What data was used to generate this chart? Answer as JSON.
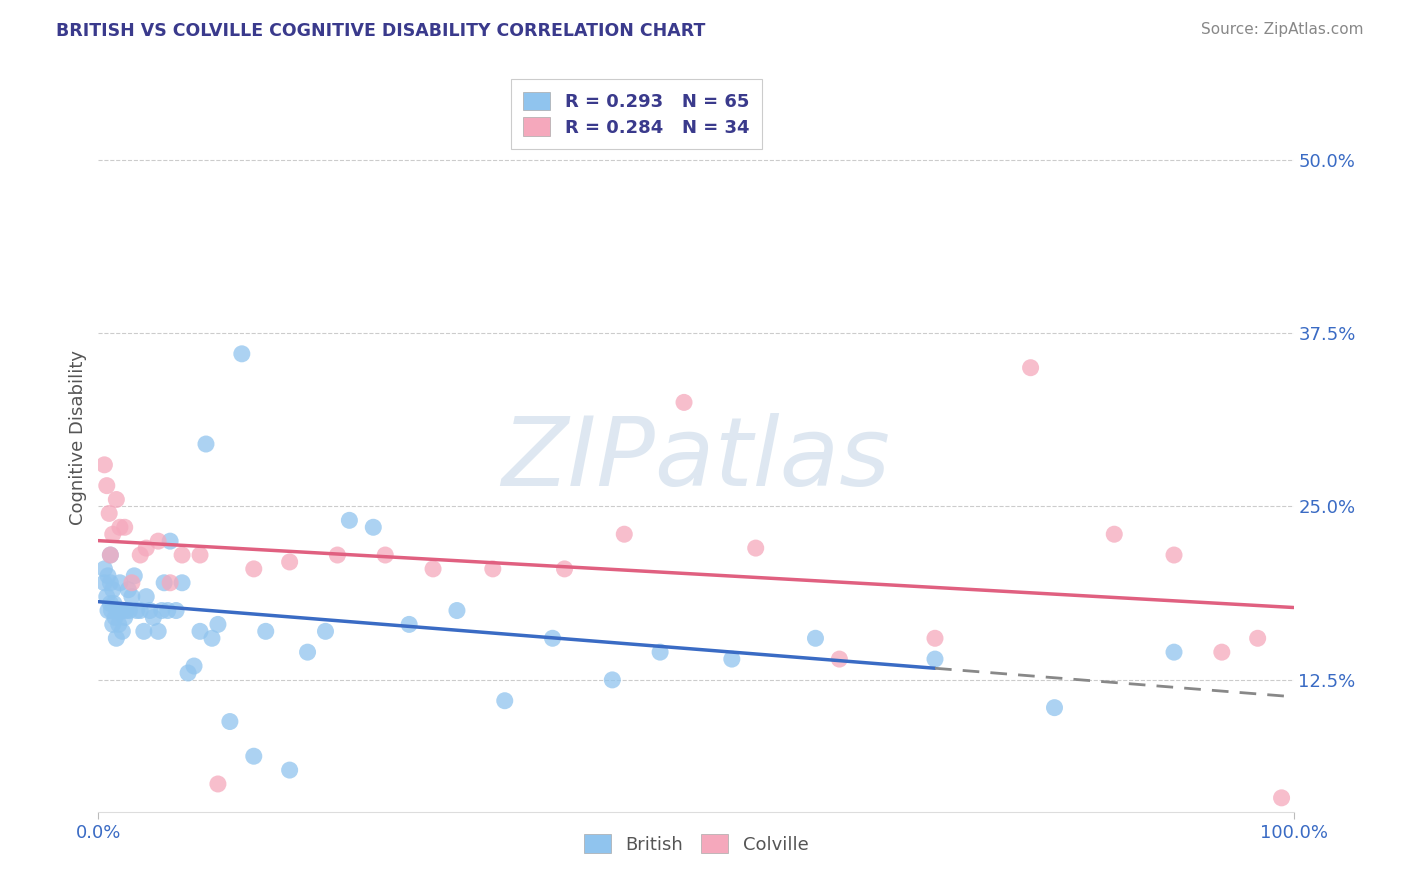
{
  "title": "BRITISH VS COLVILLE COGNITIVE DISABILITY CORRELATION CHART",
  "source": "Source: ZipAtlas.com",
  "ylabel": "Cognitive Disability",
  "ytick_labels": [
    "12.5%",
    "25.0%",
    "37.5%",
    "50.0%"
  ],
  "ytick_values": [
    0.125,
    0.25,
    0.375,
    0.5
  ],
  "xlim": [
    0.0,
    1.0
  ],
  "ylim": [
    0.03,
    0.57
  ],
  "british_R": "0.293",
  "british_N": "65",
  "colville_R": "0.284",
  "colville_N": "34",
  "british_color": "#90C4EE",
  "colville_color": "#F5A8BC",
  "british_line_color": "#3A6BC4",
  "colville_line_color": "#E06080",
  "watermark_text": "ZIPatlas",
  "watermark_color": "#C8D8E8",
  "background_color": "#FFFFFF",
  "grid_color": "#CCCCCC",
  "british_x": [
    0.005,
    0.005,
    0.007,
    0.008,
    0.008,
    0.01,
    0.01,
    0.01,
    0.011,
    0.012,
    0.012,
    0.013,
    0.014,
    0.015,
    0.016,
    0.017,
    0.018,
    0.019,
    0.02,
    0.02,
    0.022,
    0.023,
    0.025,
    0.026,
    0.028,
    0.03,
    0.032,
    0.035,
    0.038,
    0.04,
    0.043,
    0.046,
    0.05,
    0.053,
    0.055,
    0.058,
    0.06,
    0.065,
    0.07,
    0.075,
    0.08,
    0.085,
    0.09,
    0.095,
    0.1,
    0.11,
    0.12,
    0.13,
    0.14,
    0.16,
    0.175,
    0.19,
    0.21,
    0.23,
    0.26,
    0.3,
    0.34,
    0.38,
    0.43,
    0.47,
    0.53,
    0.6,
    0.7,
    0.8,
    0.9
  ],
  "british_y": [
    0.195,
    0.205,
    0.185,
    0.175,
    0.2,
    0.18,
    0.195,
    0.215,
    0.175,
    0.165,
    0.19,
    0.18,
    0.17,
    0.155,
    0.175,
    0.165,
    0.195,
    0.175,
    0.175,
    0.16,
    0.17,
    0.175,
    0.19,
    0.175,
    0.185,
    0.2,
    0.175,
    0.175,
    0.16,
    0.185,
    0.175,
    0.17,
    0.16,
    0.175,
    0.195,
    0.175,
    0.225,
    0.175,
    0.195,
    0.13,
    0.135,
    0.16,
    0.295,
    0.155,
    0.165,
    0.095,
    0.36,
    0.07,
    0.16,
    0.06,
    0.145,
    0.16,
    0.24,
    0.235,
    0.165,
    0.175,
    0.11,
    0.155,
    0.125,
    0.145,
    0.14,
    0.155,
    0.14,
    0.105,
    0.145
  ],
  "colville_x": [
    0.005,
    0.007,
    0.009,
    0.01,
    0.012,
    0.015,
    0.018,
    0.022,
    0.028,
    0.035,
    0.04,
    0.05,
    0.06,
    0.07,
    0.085,
    0.1,
    0.13,
    0.16,
    0.2,
    0.24,
    0.28,
    0.33,
    0.39,
    0.44,
    0.49,
    0.55,
    0.62,
    0.7,
    0.78,
    0.85,
    0.9,
    0.94,
    0.97,
    0.99
  ],
  "colville_y": [
    0.28,
    0.265,
    0.245,
    0.215,
    0.23,
    0.255,
    0.235,
    0.235,
    0.195,
    0.215,
    0.22,
    0.225,
    0.195,
    0.215,
    0.215,
    0.05,
    0.205,
    0.21,
    0.215,
    0.215,
    0.205,
    0.205,
    0.205,
    0.23,
    0.325,
    0.22,
    0.14,
    0.155,
    0.35,
    0.23,
    0.215,
    0.145,
    0.155,
    0.04
  ],
  "legend_label_british": "British",
  "legend_label_colville": "Colville"
}
